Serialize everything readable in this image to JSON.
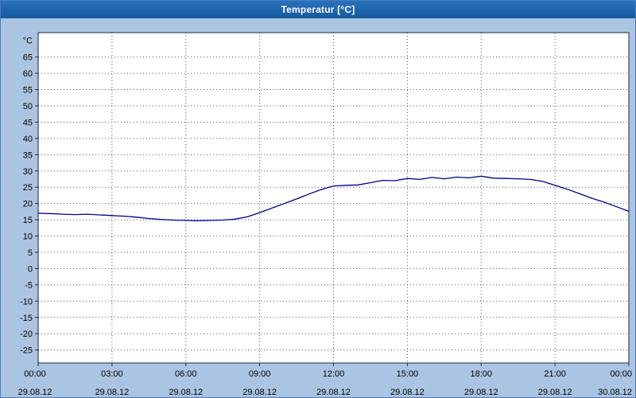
{
  "window": {
    "title": "Temperatur [°C]"
  },
  "colors": {
    "title_bar": "#1b62ae",
    "body_background": "#abc4e2",
    "plot_background": "#ffffff",
    "plot_border": "#1a2a4a",
    "grid": "#46508c",
    "line": "#000090",
    "text": "#000000"
  },
  "chart_data": {
    "type": "line",
    "title": "Temperatur [°C]",
    "ylabel": "°C",
    "xlabel": "",
    "grid": true,
    "legend": "none",
    "ylim": [
      -29,
      72.5
    ],
    "y_ticks": [
      65,
      60,
      55,
      50,
      45,
      40,
      35,
      30,
      25,
      20,
      15,
      10,
      5,
      0,
      -5,
      -10,
      -15,
      -20,
      -25
    ],
    "x_ticks": [
      {
        "hour": 0,
        "time": "00:00",
        "date": "29.08.12"
      },
      {
        "hour": 3,
        "time": "03:00",
        "date": "29.08.12"
      },
      {
        "hour": 6,
        "time": "06:00",
        "date": "29.08.12"
      },
      {
        "hour": 9,
        "time": "09:00",
        "date": "29.08.12"
      },
      {
        "hour": 12,
        "time": "12:00",
        "date": "29.08.12"
      },
      {
        "hour": 15,
        "time": "15:00",
        "date": "29.08.12"
      },
      {
        "hour": 18,
        "time": "18:00",
        "date": "29.08.12"
      },
      {
        "hour": 21,
        "time": "21:00",
        "date": "29.08.12"
      },
      {
        "hour": 24,
        "time": "00:00",
        "date": "30.08.12"
      }
    ],
    "series": [
      {
        "name": "Temperatur",
        "x_hours": [
          0,
          0.5,
          1,
          1.5,
          2,
          2.5,
          3,
          3.5,
          4,
          4.5,
          5,
          5.5,
          6,
          6.5,
          7,
          7.5,
          8,
          8.5,
          9,
          9.5,
          10,
          10.5,
          11,
          11.5,
          12,
          12.5,
          13,
          13.5,
          14,
          14.5,
          15,
          15.5,
          16,
          16.5,
          17,
          17.5,
          18,
          18.5,
          19,
          19.5,
          20,
          20.5,
          21,
          21.5,
          22,
          22.5,
          23,
          23.5,
          24
        ],
        "values": [
          17.0,
          16.9,
          16.7,
          16.6,
          16.7,
          16.5,
          16.3,
          16.1,
          15.8,
          15.4,
          15.1,
          14.9,
          14.8,
          14.7,
          14.8,
          14.9,
          15.2,
          15.9,
          17.2,
          18.6,
          20.0,
          21.4,
          22.9,
          24.3,
          25.4,
          25.6,
          25.7,
          26.4,
          27.1,
          27.0,
          27.7,
          27.4,
          28.0,
          27.6,
          28.1,
          27.9,
          28.4,
          27.8,
          27.7,
          27.6,
          27.4,
          26.8,
          25.6,
          24.4,
          23.0,
          21.6,
          20.4,
          19.0,
          17.6
        ]
      }
    ]
  }
}
